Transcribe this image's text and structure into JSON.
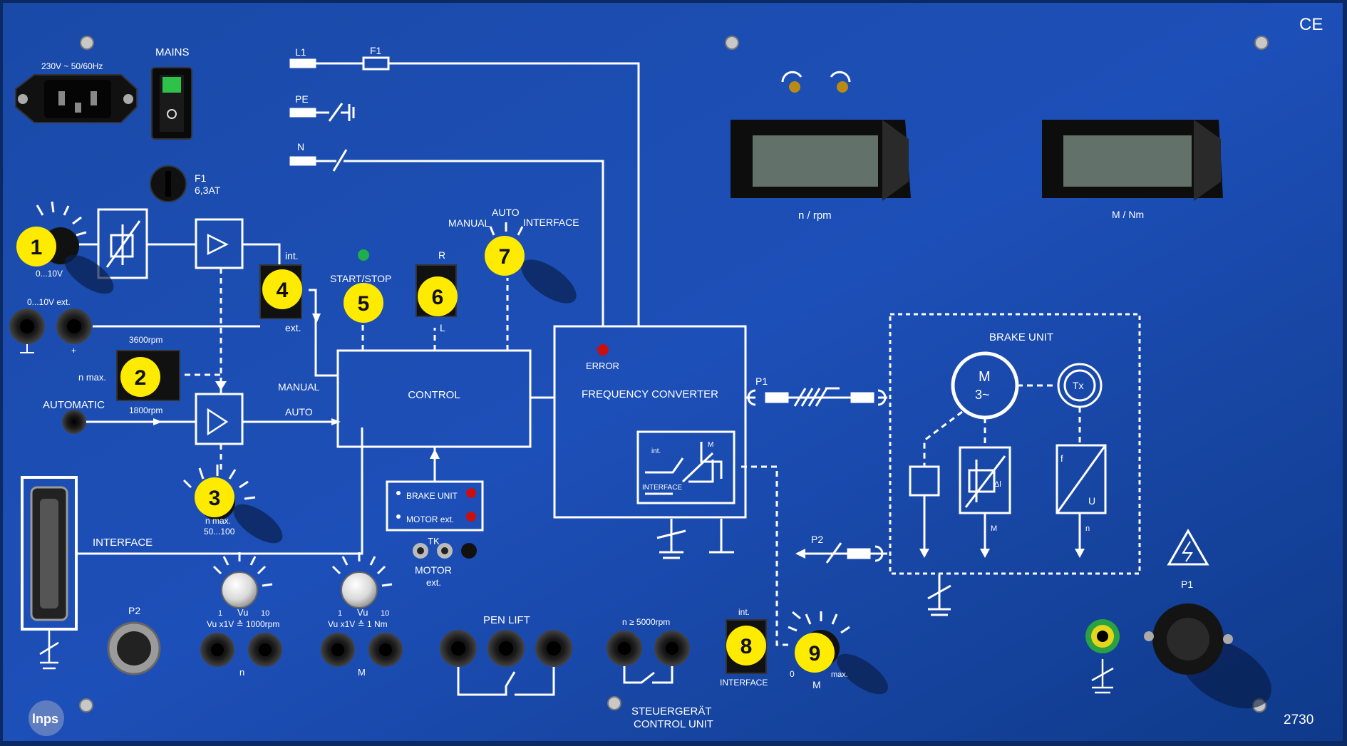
{
  "labels": {
    "ce": "CE",
    "mains_rating": "230V ~  50/60Hz",
    "mains": "MAINS",
    "fuse_f1": "F1",
    "fuse_rating": "6,3AT",
    "l1": "L1",
    "f1_line": "F1",
    "pe": "PE",
    "n": "N",
    "v_0_10": "0...10V",
    "v_ext": "0...10V ext.",
    "plus": "+",
    "int": "int.",
    "ext": "ext.",
    "rpm_3600": "3600rpm",
    "n_max": "n max.",
    "rpm_1800": "1800rpm",
    "automatic": "AUTOMATIC",
    "manual_in": "MANUAL",
    "auto_in": "AUTO",
    "start_stop": "START/STOP",
    "r": "R",
    "l": "L",
    "sel_manual": "MANUAL",
    "sel_auto": "AUTO",
    "sel_interface": "INTERFACE",
    "control": "CONTROL",
    "error": "ERROR",
    "freq_converter": "FREQUENCY CONVERTER",
    "int_small": "int.",
    "interface_small": "INTERFACE",
    "brake_unit_led": "BRAKE UNIT",
    "motor_ext_led": "MOTOR ext.",
    "tk": "TK",
    "motor_ext": "MOTOR",
    "motor_ext2": "ext.",
    "nmax_range1": "n max.",
    "nmax_range2": "50...100",
    "interface": "INTERFACE",
    "p2": "P2",
    "vu1": "Vu",
    "vu1_1": "1",
    "vu1_10": "10",
    "vu1_scale": "Vu x1V ≙ 1000rpm",
    "vu2": "Vu",
    "vu2_1": "1",
    "vu2_10": "10",
    "vu2_scale": "Vu x1V ≙ 1 Nm",
    "n_sock": "n",
    "m_sock": "M",
    "pen_lift": "PEN LIFT",
    "n_5000": "n ≥ 5000rpm",
    "steuer": "STEUERGERÄT",
    "control_unit": "CONTROL UNIT",
    "sw8_int": "int.",
    "sw8_interface": "INTERFACE",
    "k9_0": "0",
    "k9_max": "max.",
    "k9_m": "M",
    "n_rpm": "n / rpm",
    "m_nm": "M / Nm",
    "p1": "P1",
    "p2_right": "P2",
    "brake_unit": "BRAKE UNIT",
    "motor_m": "M",
    "motor_3": "3~",
    "tx": "Tx",
    "f": "f",
    "u": "U",
    "m_small": "M",
    "n_small": "n",
    "dl": "Δl",
    "p1_right": "P1",
    "model": "2730",
    "logo": "lnps"
  },
  "markers": {
    "m1": "1",
    "m2": "2",
    "m3": "3",
    "m4": "4",
    "m5": "5",
    "m6": "6",
    "m7": "7",
    "m8": "8",
    "m9": "9"
  },
  "colors": {
    "panel": "#0a2f6e",
    "marker": "#ffeb00",
    "led_green": "#1fae4b",
    "led_red": "#c81010"
  }
}
